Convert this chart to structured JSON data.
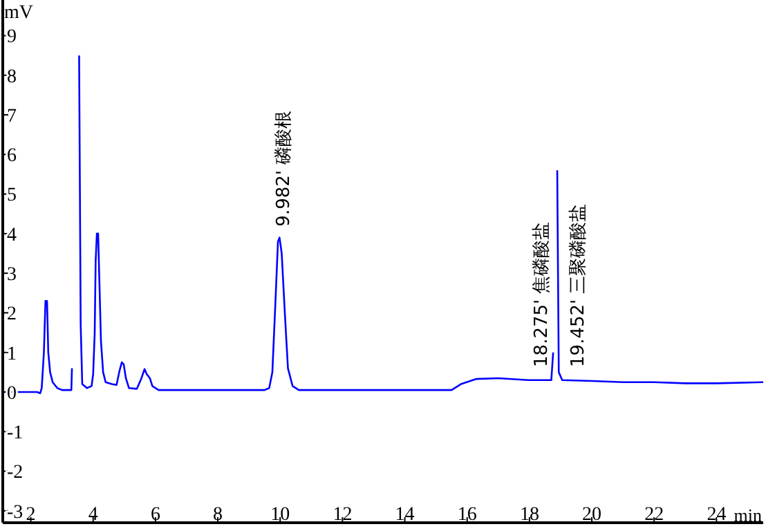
{
  "chart_data": {
    "type": "line",
    "xlabel": "min",
    "ylabel": "mV",
    "xlim": [
      1.1,
      25.5
    ],
    "xticks": [
      2,
      4,
      6,
      8,
      10,
      12,
      14,
      16,
      18,
      20,
      22,
      24
    ],
    "ylim": [
      -3.3,
      9.9
    ],
    "yticks": [
      -3,
      -2,
      -1,
      0,
      1,
      2,
      3,
      4,
      5,
      6,
      7,
      8,
      9
    ],
    "marker": "none",
    "line_style": "solid",
    "series": [
      {
        "color": "#0000ff",
        "x": [
          1.1,
          2.2,
          2.3,
          2.35,
          2.42,
          2.47,
          2.52,
          2.56,
          2.62,
          2.7,
          2.85,
          3.0,
          3.3,
          3.32,
          3.36,
          3.5,
          3.55,
          3.6,
          3.65,
          3.8,
          3.95,
          4.0,
          4.05,
          4.08,
          4.12,
          4.16,
          4.2,
          4.25,
          4.32,
          4.4,
          4.6,
          4.75,
          4.85,
          4.92,
          4.98,
          5.05,
          5.15,
          5.4,
          5.55,
          5.65,
          5.72,
          5.82,
          5.9,
          6.1,
          9.5,
          9.65,
          9.75,
          9.85,
          9.93,
          9.98,
          10.05,
          10.15,
          10.25,
          10.4,
          10.6,
          15.5,
          15.8,
          16.3,
          17.0,
          18.0,
          18.7,
          18.76,
          18.8,
          18.86,
          18.89,
          18.94,
          19.05,
          20.0,
          21.0,
          22.0,
          23.0,
          24.0,
          25.5
        ],
        "values": [
          0,
          0,
          -0.03,
          0.1,
          1.0,
          2.3,
          2.3,
          1.0,
          0.5,
          0.25,
          0.1,
          0.05,
          0.05,
          0.6,
          null,
          null,
          8.5,
          1.7,
          0.2,
          0.1,
          0.15,
          0.45,
          1.5,
          3.3,
          4.0,
          4.0,
          2.8,
          1.3,
          0.5,
          0.25,
          0.2,
          0.18,
          0.55,
          0.75,
          0.7,
          0.35,
          0.1,
          0.08,
          0.35,
          0.58,
          0.45,
          0.35,
          0.15,
          0.05,
          0.05,
          0.1,
          0.5,
          2.3,
          3.8,
          3.9,
          3.5,
          2.0,
          0.6,
          0.15,
          0.05,
          0.05,
          0.2,
          0.33,
          0.35,
          0.3,
          0.3,
          1.0,
          null,
          null,
          5.6,
          0.5,
          0.3,
          0.28,
          0.25,
          0.25,
          0.22,
          0.22,
          0.25
        ]
      }
    ],
    "annotations": [
      {
        "text": "9.982'  磷酸根",
        "x": 9.982,
        "y": 3.9
      },
      {
        "text": "18.275'  焦磷酸盐",
        "x": 18.275,
        "y": 0.35
      },
      {
        "text": "19.452'  三聚磷酸盐",
        "x": 19.452,
        "y": 0.35
      }
    ]
  }
}
